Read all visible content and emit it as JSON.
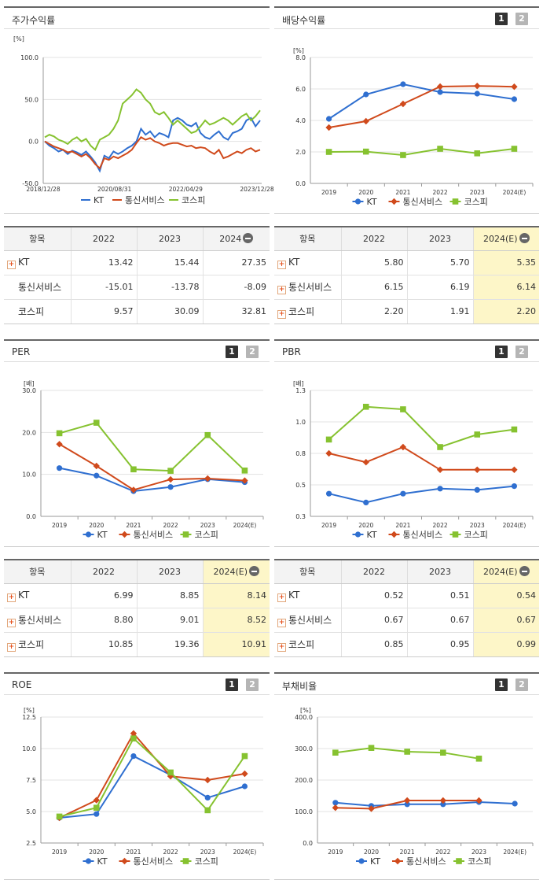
{
  "colors": {
    "kt": "#2f6fd0",
    "telecom": "#d04a1c",
    "kospi": "#86c230"
  },
  "legend": [
    "KT",
    "통신서비스",
    "코스피"
  ],
  "stock_return": {
    "title": "주가수익률",
    "unit": "[%]",
    "chart_data": {
      "type": "line",
      "title": "주가수익률",
      "ylim": [
        -50,
        100
      ],
      "y_ticks": [
        "100.0",
        "50.0",
        "0.0",
        "-50.0"
      ],
      "x_ticks": [
        "2018/12/28",
        "2020/08/31",
        "2022/04/29",
        "2023/12/28"
      ],
      "series": [
        {
          "name": "KT",
          "values": [
            0,
            -5,
            -8,
            -12,
            -10,
            -15,
            -11,
            -13,
            -16,
            -12,
            -18,
            -25,
            -35,
            -17,
            -20,
            -12,
            -15,
            -12,
            -8,
            -5,
            0,
            15,
            8,
            12,
            5,
            10,
            8,
            5,
            25,
            28,
            25,
            20,
            18,
            22,
            10,
            5,
            3,
            8,
            12,
            5,
            2,
            10,
            12,
            15,
            25,
            28,
            18,
            25
          ]
        },
        {
          "name": "통신서비스",
          "values": [
            0,
            -3,
            -6,
            -8,
            -10,
            -13,
            -12,
            -15,
            -18,
            -15,
            -20,
            -27,
            -32,
            -20,
            -22,
            -18,
            -20,
            -17,
            -14,
            -10,
            -2,
            5,
            2,
            4,
            0,
            -2,
            -5,
            -3,
            -2,
            -2,
            -4,
            -6,
            -5,
            -8,
            -7,
            -8,
            -12,
            -15,
            -10,
            -20,
            -18,
            -15,
            -12,
            -14,
            -10,
            -8,
            -12,
            -10
          ]
        },
        {
          "name": "코스피",
          "values": [
            5,
            8,
            6,
            2,
            0,
            -3,
            2,
            5,
            0,
            3,
            -5,
            -10,
            2,
            5,
            8,
            15,
            25,
            45,
            50,
            55,
            62,
            58,
            50,
            45,
            35,
            32,
            35,
            28,
            20,
            25,
            20,
            15,
            10,
            12,
            18,
            25,
            20,
            22,
            25,
            28,
            25,
            20,
            25,
            30,
            33,
            25,
            30,
            37
          ]
        }
      ]
    },
    "table": {
      "headers": [
        "항목",
        "2022",
        "2023",
        "2024"
      ],
      "rows": [
        {
          "label": "KT",
          "expand": true,
          "values": [
            "13.42",
            "15.44",
            "27.35"
          ]
        },
        {
          "label": "통신서비스",
          "expand": false,
          "values": [
            "-15.01",
            "-13.78",
            "-8.09"
          ]
        },
        {
          "label": "코스피",
          "expand": false,
          "values": [
            "9.57",
            "30.09",
            "32.81"
          ]
        }
      ]
    }
  },
  "dividend": {
    "title": "배당수익률",
    "page1": "1",
    "page2": "2",
    "unit": "[%]",
    "chart_data": {
      "type": "line",
      "title": "배당수익률",
      "categories": [
        "2019",
        "2020",
        "2021",
        "2022",
        "2023",
        "2024(E)"
      ],
      "ylim": [
        0,
        8
      ],
      "y_ticks": [
        "8.0",
        "6.0",
        "4.0",
        "2.0",
        "0.0"
      ],
      "series": [
        {
          "name": "KT",
          "values": [
            4.1,
            5.65,
            6.3,
            5.8,
            5.7,
            5.35
          ]
        },
        {
          "name": "통신서비스",
          "values": [
            3.55,
            3.95,
            5.05,
            6.15,
            6.19,
            6.14
          ]
        },
        {
          "name": "코스피",
          "values": [
            2.0,
            2.02,
            1.8,
            2.2,
            1.91,
            2.2
          ]
        }
      ]
    },
    "table": {
      "headers": [
        "항목",
        "2022",
        "2023",
        "2024(E)"
      ],
      "rows": [
        {
          "label": "KT",
          "expand": true,
          "values": [
            "5.80",
            "5.70",
            "5.35"
          ]
        },
        {
          "label": "통신서비스",
          "expand": true,
          "values": [
            "6.15",
            "6.19",
            "6.14"
          ]
        },
        {
          "label": "코스피",
          "expand": true,
          "values": [
            "2.20",
            "1.91",
            "2.20"
          ]
        }
      ]
    }
  },
  "per": {
    "title": "PER",
    "page1": "1",
    "page2": "2",
    "unit": "[배]",
    "chart_data": {
      "type": "line",
      "title": "PER",
      "categories": [
        "2019",
        "2020",
        "2021",
        "2022",
        "2023",
        "2024(E)"
      ],
      "ylim": [
        0,
        30
      ],
      "y_ticks": [
        "30.0",
        "20.0",
        "10.0",
        "0.0"
      ],
      "series": [
        {
          "name": "KT",
          "values": [
            11.5,
            9.7,
            6.0,
            6.99,
            8.85,
            8.14
          ]
        },
        {
          "name": "통신서비스",
          "values": [
            17.2,
            12.0,
            6.3,
            8.8,
            9.01,
            8.52
          ]
        },
        {
          "name": "코스피",
          "values": [
            19.8,
            22.3,
            11.2,
            10.85,
            19.36,
            10.91
          ]
        }
      ]
    },
    "table": {
      "headers": [
        "항목",
        "2022",
        "2023",
        "2024(E)"
      ],
      "rows": [
        {
          "label": "KT",
          "expand": true,
          "values": [
            "6.99",
            "8.85",
            "8.14"
          ]
        },
        {
          "label": "통신서비스",
          "expand": true,
          "values": [
            "8.80",
            "9.01",
            "8.52"
          ]
        },
        {
          "label": "코스피",
          "expand": true,
          "values": [
            "10.85",
            "19.36",
            "10.91"
          ]
        }
      ]
    }
  },
  "pbr": {
    "title": "PBR",
    "page1": "1",
    "page2": "2",
    "unit": "[배]",
    "chart_data": {
      "type": "line",
      "title": "PBR",
      "categories": [
        "2019",
        "2020",
        "2021",
        "2022",
        "2023",
        "2024(E)"
      ],
      "ylim": [
        0.3,
        1.3
      ],
      "y_ticks": [
        "1.3",
        "1.0",
        "0.8",
        "0.5",
        "0.3"
      ],
      "series": [
        {
          "name": "KT",
          "values": [
            0.48,
            0.41,
            0.48,
            0.52,
            0.51,
            0.54
          ]
        },
        {
          "name": "통신서비스",
          "values": [
            0.8,
            0.73,
            0.85,
            0.67,
            0.67,
            0.67
          ]
        },
        {
          "name": "코스피",
          "values": [
            0.91,
            1.17,
            1.15,
            0.85,
            0.95,
            0.99
          ]
        }
      ]
    },
    "table": {
      "headers": [
        "항목",
        "2022",
        "2023",
        "2024(E)"
      ],
      "rows": [
        {
          "label": "KT",
          "expand": true,
          "values": [
            "0.52",
            "0.51",
            "0.54"
          ]
        },
        {
          "label": "통신서비스",
          "expand": true,
          "values": [
            "0.67",
            "0.67",
            "0.67"
          ]
        },
        {
          "label": "코스피",
          "expand": true,
          "values": [
            "0.85",
            "0.95",
            "0.99"
          ]
        }
      ]
    }
  },
  "roe": {
    "title": "ROE",
    "page1": "1",
    "page2": "2",
    "unit": "[%]",
    "chart_data": {
      "type": "line",
      "title": "ROE",
      "categories": [
        "2019",
        "2020",
        "2021",
        "2022",
        "2023",
        "2024(E)"
      ],
      "ylim": [
        2.5,
        12.5
      ],
      "y_ticks": [
        "12.5",
        "10.0",
        "7.5",
        "5.0",
        "2.5"
      ],
      "series": [
        {
          "name": "KT",
          "values": [
            4.5,
            4.8,
            9.4,
            7.9,
            6.1,
            7.0
          ]
        },
        {
          "name": "통신서비스",
          "values": [
            4.5,
            5.9,
            11.2,
            7.8,
            7.5,
            8.0
          ]
        },
        {
          "name": "코스피",
          "values": [
            4.6,
            5.3,
            10.8,
            8.1,
            5.1,
            9.4
          ]
        }
      ]
    }
  },
  "debt": {
    "title": "부채비율",
    "page1": "1",
    "page2": "2",
    "unit": "[%]",
    "chart_data": {
      "type": "line",
      "title": "부채비율",
      "categories": [
        "2019",
        "2020",
        "2021",
        "2022",
        "2023",
        "2024(E)"
      ],
      "ylim": [
        0,
        400
      ],
      "y_ticks": [
        "400.0",
        "300.0",
        "200.0",
        "100.0",
        "0.0"
      ],
      "series": [
        {
          "name": "KT",
          "values": [
            128,
            118,
            123,
            123,
            130,
            125
          ]
        },
        {
          "name": "통신서비스",
          "values": [
            112,
            109,
            135,
            135,
            135,
            null
          ]
        },
        {
          "name": "코스피",
          "values": [
            287,
            302,
            290,
            287,
            268,
            null
          ]
        }
      ]
    }
  }
}
